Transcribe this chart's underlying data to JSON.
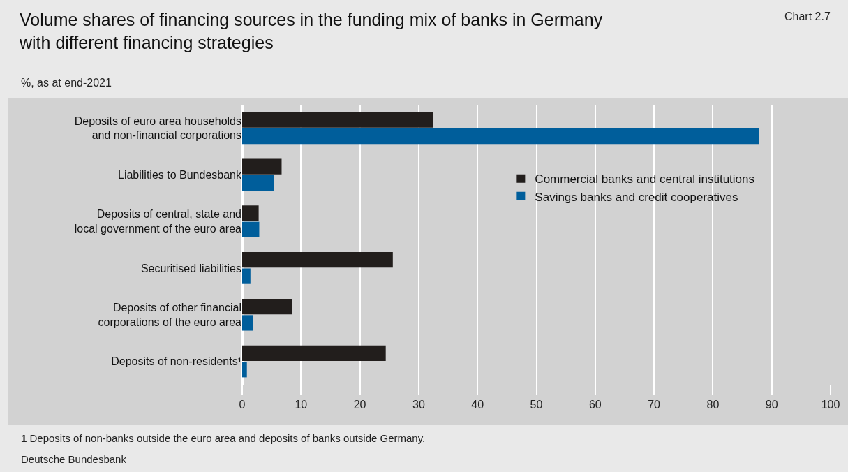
{
  "chart_data": {
    "type": "bar",
    "orientation": "horizontal",
    "title": "Volume shares of financing sources in the funding mix of banks in Germany\nwith different financing strategies",
    "subtitle": "%, as at end-2021",
    "categories": [
      "Deposits of euro area households\nand non-financial corporations",
      "Liabilities to Bundesbank",
      "Deposits of central, state and\nlocal government of the euro area",
      "Securitised liabilities",
      "Deposits of other financial\ncorporations of the euro area",
      "Deposits of non-residents¹"
    ],
    "series": [
      {
        "name": "Commercial banks and central institutions",
        "color": "#221e1c",
        "values": [
          32.4,
          6.7,
          2.8,
          25.6,
          8.5,
          24.4
        ]
      },
      {
        "name": "Savings banks and credit cooperatives",
        "color": "#005e9b",
        "values": [
          87.9,
          5.4,
          2.9,
          1.4,
          1.8,
          0.8
        ]
      }
    ],
    "xlim": [
      0,
      100
    ],
    "xticks": [
      0,
      10,
      20,
      30,
      40,
      50,
      60,
      70,
      80,
      90,
      100
    ],
    "grid": "x",
    "legend": "top right",
    "annotations": [
      "Chart 2.7",
      "1 Deposits of non-banks outside the euro area and deposits of banks outside Germany.",
      "Deutsche Bundesbank"
    ]
  }
}
